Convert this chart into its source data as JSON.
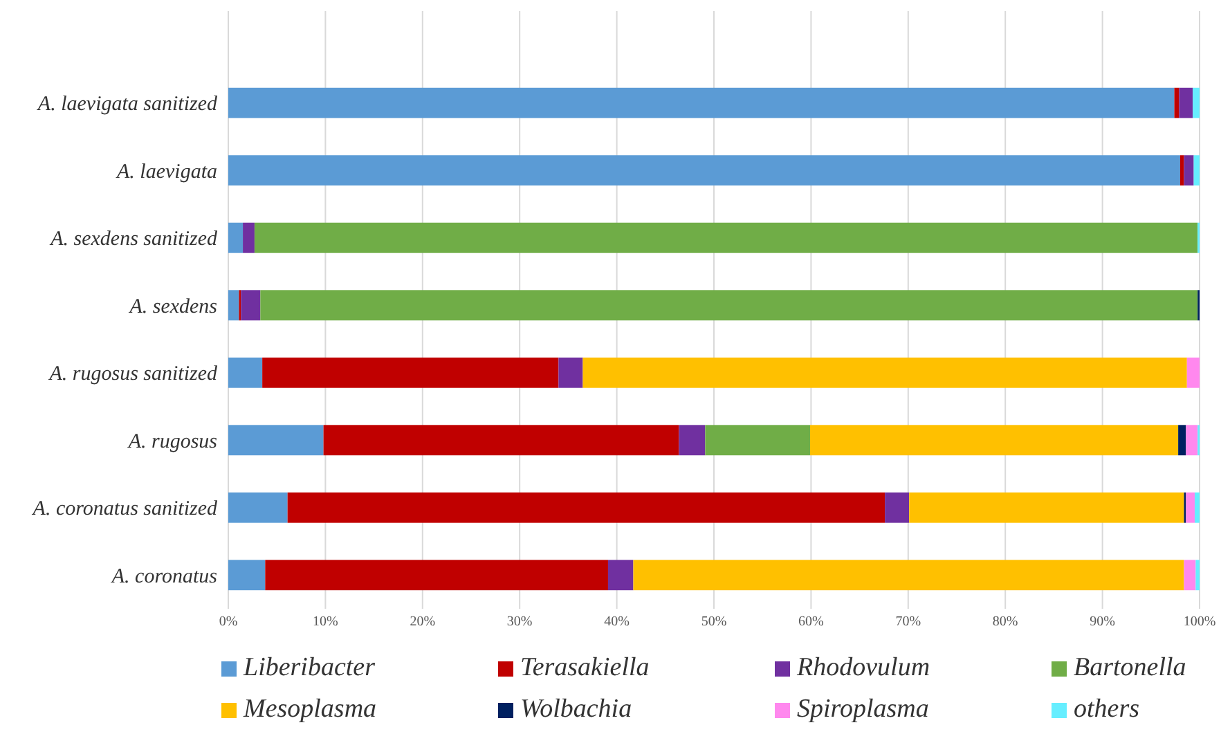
{
  "chart_data": {
    "type": "bar",
    "orientation": "horizontal",
    "stacked": true,
    "categories": [
      "A. laevigata sanitized",
      "A. laevigata",
      "A. sexdens sanitized",
      "A. sexdens",
      "A. rugosus sanitized",
      "A. rugosus ",
      "A. coronatus sanitized",
      "A. coronatus"
    ],
    "series": [
      {
        "name": "Liberibacter",
        "color": "#5b9bd5",
        "values": [
          97.4,
          98.0,
          1.5,
          1.1,
          3.5,
          9.8,
          6.1,
          3.8
        ]
      },
      {
        "name": "Terasakiella",
        "color": "#c00000",
        "values": [
          0.5,
          0.4,
          0,
          0.2,
          30.5,
          36.6,
          61.5,
          35.3
        ]
      },
      {
        "name": "Rhodovulum",
        "color": "#7030a0",
        "values": [
          1.4,
          1.0,
          1.2,
          2.0,
          2.5,
          2.7,
          2.5,
          2.6
        ]
      },
      {
        "name": "Bartonella",
        "color": "#70ad47",
        "values": [
          0,
          0,
          97.1,
          96.5,
          0,
          10.8,
          0,
          0
        ]
      },
      {
        "name": "Mesoplasma",
        "color": "#ffc000",
        "values": [
          0,
          0,
          0,
          0,
          62.2,
          37.9,
          28.3,
          56.7
        ]
      },
      {
        "name": "Wolbachia",
        "color": "#002060",
        "values": [
          0,
          0,
          0,
          0.2,
          0,
          0.8,
          0.2,
          0
        ]
      },
      {
        "name": "Spiroplasma",
        "color": "#ff88ee",
        "values": [
          0,
          0,
          0,
          0,
          1.3,
          1.2,
          0.9,
          1.2
        ]
      },
      {
        "name": "others",
        "color": "#66eeff",
        "values": [
          0.7,
          0.6,
          0.2,
          0,
          0,
          0.2,
          0.5,
          0.4
        ]
      }
    ],
    "xlim": [
      0,
      100
    ],
    "xticks": [
      {
        "value": 0,
        "label": "0%"
      },
      {
        "value": 10,
        "label": "10%"
      },
      {
        "value": 20,
        "label": "20%"
      },
      {
        "value": 30,
        "label": "30%"
      },
      {
        "value": 40,
        "label": "40%"
      },
      {
        "value": 50,
        "label": "50%"
      },
      {
        "value": 60,
        "label": "60%"
      },
      {
        "value": 70,
        "label": "70%"
      },
      {
        "value": 80,
        "label": "80%"
      },
      {
        "value": 90,
        "label": "90%"
      },
      {
        "value": 100,
        "label": "100%"
      }
    ],
    "grid": "x",
    "legend": "bottom"
  }
}
